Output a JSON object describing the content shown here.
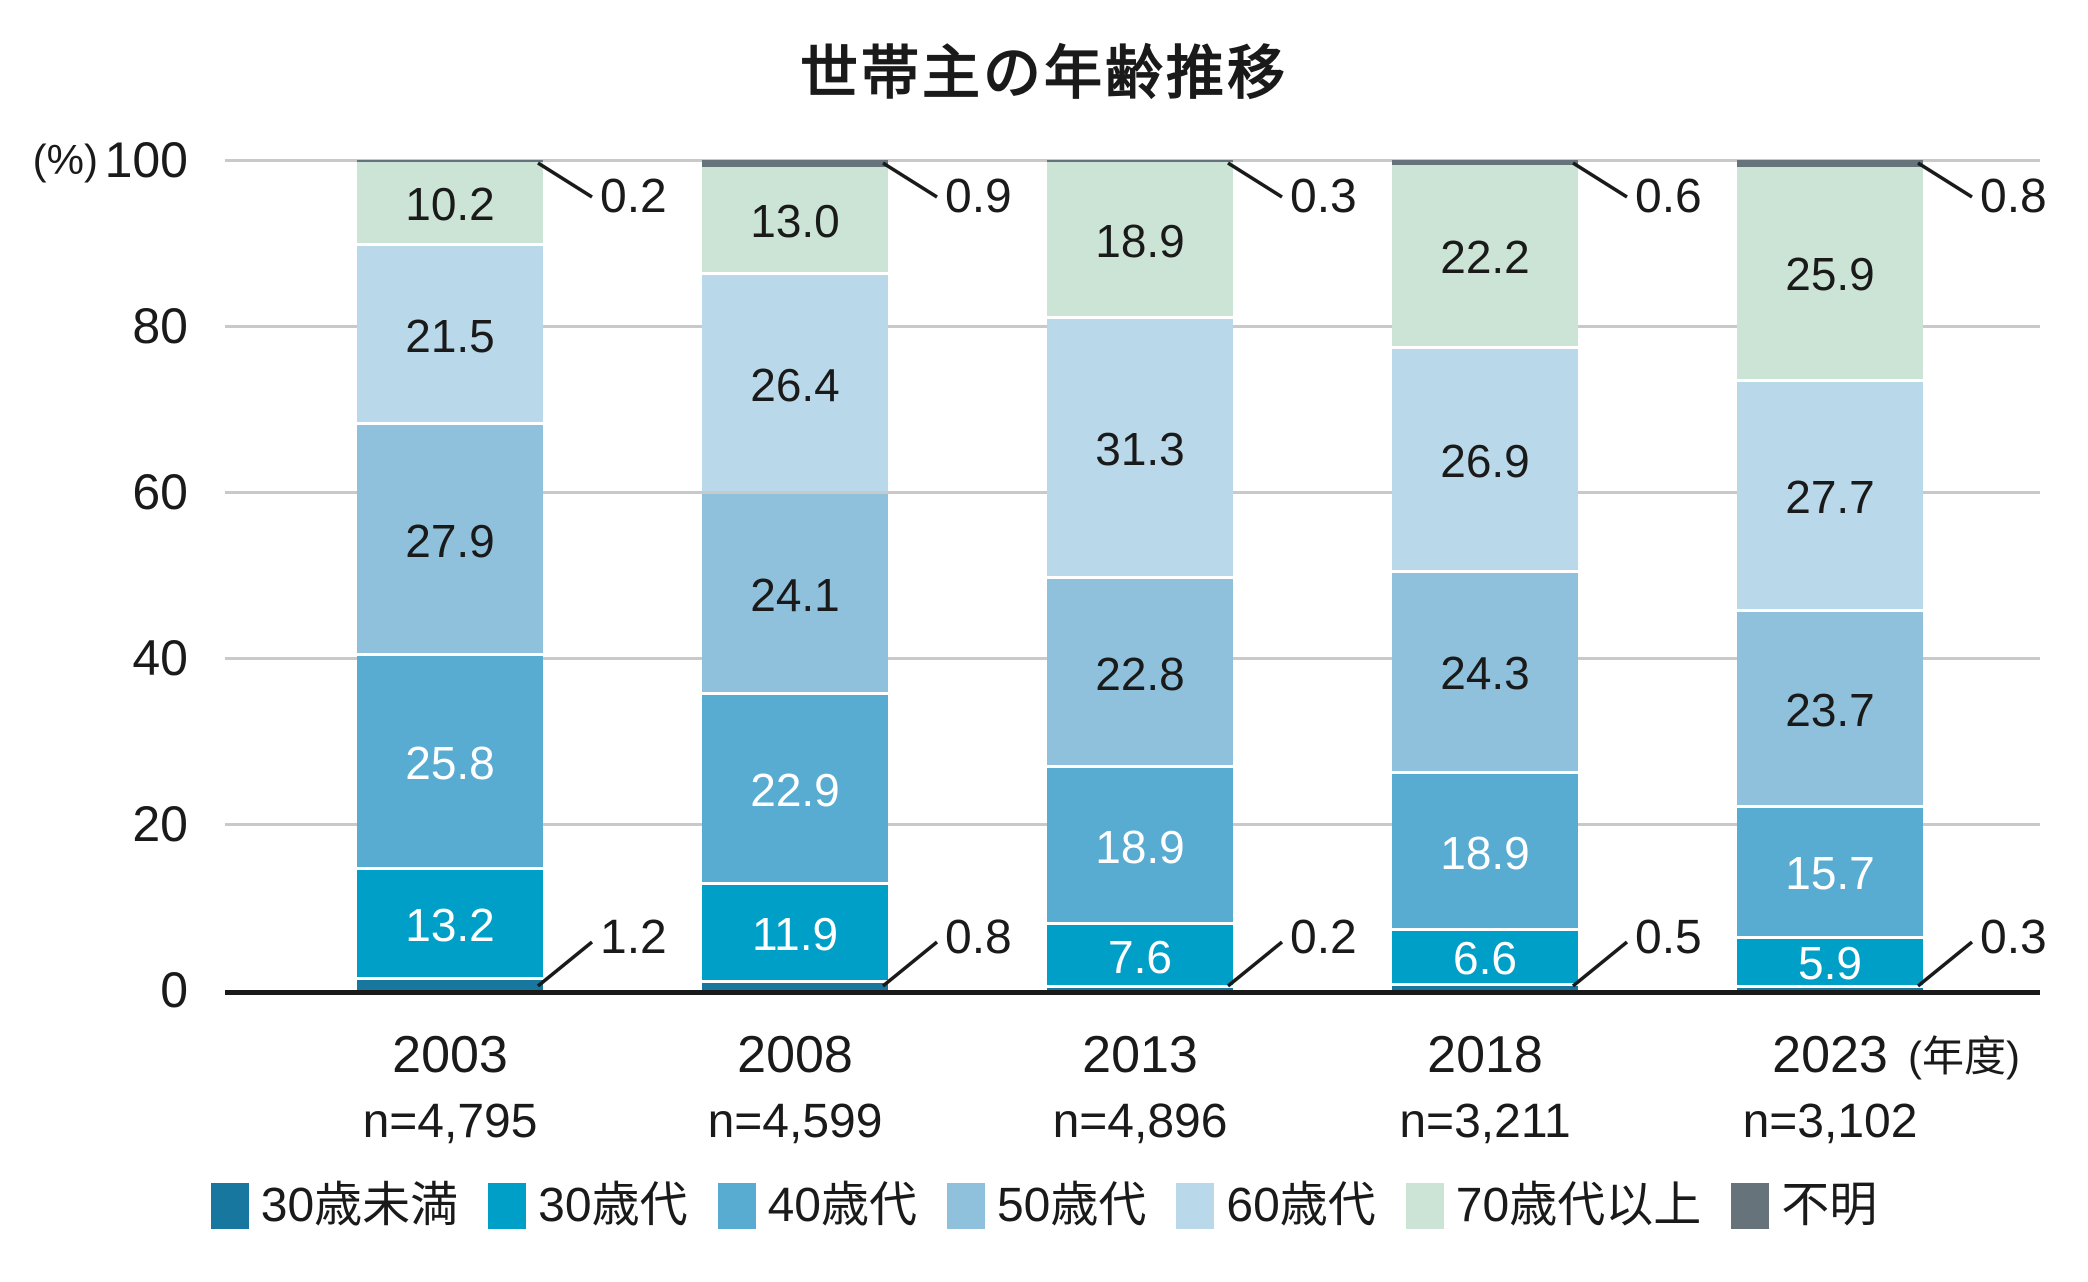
{
  "title": "世帯主の年齢推移",
  "y_axis": {
    "unit": "(%)",
    "ticks": [
      "100",
      "80",
      "60",
      "40",
      "20",
      "0"
    ]
  },
  "x_axis": {
    "unit_suffix": "(年度)"
  },
  "colors": {
    "under30": "#17779e",
    "thirties": "#009fc7",
    "forties": "#58abd1",
    "fifties": "#8fc1dc",
    "sixties": "#b9d8e9",
    "seventies": "#cbe4d6",
    "unknown": "#67737a",
    "gridline": "#c9c9c9",
    "axis": "#1a1a1a"
  },
  "chart_data": {
    "type": "bar",
    "stacked": true,
    "title": "世帯主の年齢推移",
    "ylabel": "(%)",
    "ylim": [
      0,
      100
    ],
    "grid": true,
    "legend_position": "bottom",
    "categories": [
      {
        "year": "2003",
        "n": "n=4,795"
      },
      {
        "year": "2008",
        "n": "n=4,599"
      },
      {
        "year": "2013",
        "n": "n=4,896"
      },
      {
        "year": "2018",
        "n": "n=3,211"
      },
      {
        "year": "2023",
        "n": "n=3,102",
        "suffix": "(年度)"
      }
    ],
    "series": [
      {
        "name": "30歳未満",
        "color": "#17779e",
        "label_style": "callout-bottom",
        "values": [
          1.2,
          0.8,
          0.2,
          0.5,
          0.3
        ],
        "labels": [
          "1.2",
          "0.8",
          "0.2",
          "0.5",
          "0.3"
        ]
      },
      {
        "name": "30歳代",
        "color": "#009fc7",
        "label_style": "inside-white",
        "values": [
          13.2,
          11.9,
          7.6,
          6.6,
          5.9
        ],
        "labels": [
          "13.2",
          "11.9",
          "7.6",
          "6.6",
          "5.9"
        ]
      },
      {
        "name": "40歳代",
        "color": "#58abd1",
        "label_style": "inside-white",
        "values": [
          25.8,
          22.9,
          18.9,
          18.9,
          15.7
        ],
        "labels": [
          "25.8",
          "22.9",
          "18.9",
          "18.9",
          "15.7"
        ]
      },
      {
        "name": "50歳代",
        "color": "#8fc1dc",
        "label_style": "inside-black",
        "values": [
          27.9,
          24.1,
          22.8,
          24.3,
          23.7
        ],
        "labels": [
          "27.9",
          "24.1",
          "22.8",
          "24.3",
          "23.7"
        ]
      },
      {
        "name": "60歳代",
        "color": "#b9d8e9",
        "label_style": "inside-black",
        "values": [
          21.5,
          26.4,
          31.3,
          26.9,
          27.7
        ],
        "labels": [
          "21.5",
          "26.4",
          "31.3",
          "26.9",
          "27.7"
        ]
      },
      {
        "name": "70歳代以上",
        "color": "#cbe4d6",
        "label_style": "inside-black",
        "values": [
          10.2,
          13.0,
          18.9,
          22.2,
          25.9
        ],
        "labels": [
          "10.2",
          "13.0",
          "18.9",
          "22.2",
          "25.9"
        ]
      },
      {
        "name": "不明",
        "color": "#67737a",
        "label_style": "callout-top",
        "values": [
          0.2,
          0.9,
          0.3,
          0.6,
          0.8
        ],
        "labels": [
          "0.2",
          "0.9",
          "0.3",
          "0.6",
          "0.8"
        ]
      }
    ]
  }
}
